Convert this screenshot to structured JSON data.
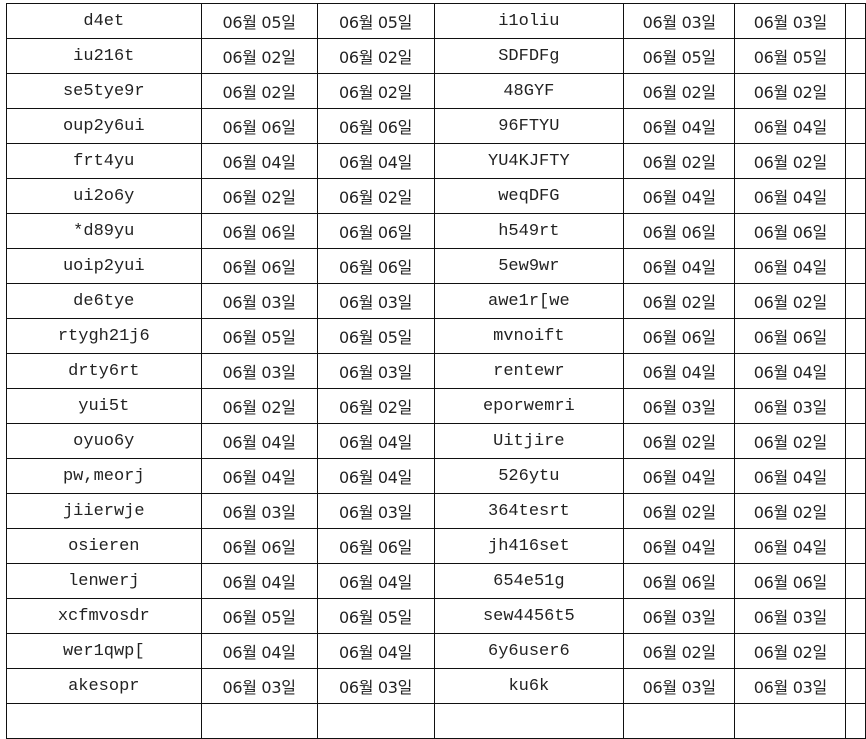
{
  "rows": [
    {
      "name1": "d4et",
      "d1a": "06월 05일",
      "d1b": "06월 05일",
      "name2": "i1oliu",
      "d2a": "06월 03일",
      "d2b": "06월 03일"
    },
    {
      "name1": "iu216t",
      "d1a": "06월 02일",
      "d1b": "06월 02일",
      "name2": "SDFDFg",
      "d2a": "06월 05일",
      "d2b": "06월 05일"
    },
    {
      "name1": "se5tye9r",
      "d1a": "06월 02일",
      "d1b": "06월 02일",
      "name2": "48GYF",
      "d2a": "06월 02일",
      "d2b": "06월 02일"
    },
    {
      "name1": "oup2y6ui",
      "d1a": "06월 06일",
      "d1b": "06월 06일",
      "name2": "96FTYU",
      "d2a": "06월 04일",
      "d2b": "06월 04일"
    },
    {
      "name1": "frt4yu",
      "d1a": "06월 04일",
      "d1b": "06월 04일",
      "name2": "YU4KJFTY",
      "d2a": "06월 02일",
      "d2b": "06월 02일"
    },
    {
      "name1": "ui2o6y",
      "d1a": "06월 02일",
      "d1b": "06월 02일",
      "name2": "weqDFG",
      "d2a": "06월 04일",
      "d2b": "06월 04일"
    },
    {
      "name1": "*d89yu",
      "d1a": "06월 06일",
      "d1b": "06월 06일",
      "name2": "h549rt",
      "d2a": "06월 06일",
      "d2b": "06월 06일"
    },
    {
      "name1": "uoip2yui",
      "d1a": "06월 06일",
      "d1b": "06월 06일",
      "name2": "5ew9wr",
      "d2a": "06월 04일",
      "d2b": "06월 04일"
    },
    {
      "name1": "de6tye",
      "d1a": "06월 03일",
      "d1b": "06월 03일",
      "name2": "awe1r[we",
      "d2a": "06월 02일",
      "d2b": "06월 02일"
    },
    {
      "name1": "rtygh21j6",
      "d1a": "06월 05일",
      "d1b": "06월 05일",
      "name2": "mvnoift",
      "d2a": "06월 06일",
      "d2b": "06월 06일"
    },
    {
      "name1": "drty6rt",
      "d1a": "06월 03일",
      "d1b": "06월 03일",
      "name2": "rentewr",
      "d2a": "06월 04일",
      "d2b": "06월 04일"
    },
    {
      "name1": "yui5t",
      "d1a": "06월 02일",
      "d1b": "06월 02일",
      "name2": "eporwemri",
      "d2a": "06월 03일",
      "d2b": "06월 03일"
    },
    {
      "name1": "oyuo6y",
      "d1a": "06월 04일",
      "d1b": "06월 04일",
      "name2": "Uitjire",
      "d2a": "06월 02일",
      "d2b": "06월 02일"
    },
    {
      "name1": "pw,meorj",
      "d1a": "06월 04일",
      "d1b": "06월 04일",
      "name2": "526ytu",
      "d2a": "06월 04일",
      "d2b": "06월 04일"
    },
    {
      "name1": "jiierwje",
      "d1a": "06월 03일",
      "d1b": "06월 03일",
      "name2": "364tesrt",
      "d2a": "06월 02일",
      "d2b": "06월 02일"
    },
    {
      "name1": "osieren",
      "d1a": "06월 06일",
      "d1b": "06월 06일",
      "name2": "jh416set",
      "d2a": "06월 04일",
      "d2b": "06월 04일"
    },
    {
      "name1": "lenwerj",
      "d1a": "06월 04일",
      "d1b": "06월 04일",
      "name2": "654e51g",
      "d2a": "06월 06일",
      "d2b": "06월 06일"
    },
    {
      "name1": "xcfmvosdr",
      "d1a": "06월 05일",
      "d1b": "06월 05일",
      "name2": "sew4456t5",
      "d2a": "06월 03일",
      "d2b": "06월 03일"
    },
    {
      "name1": "wer1qwp[",
      "d1a": "06월 04일",
      "d1b": "06월 04일",
      "name2": "6y6user6",
      "d2a": "06월 02일",
      "d2b": "06월 02일"
    },
    {
      "name1": "akesopr",
      "d1a": "06월 03일",
      "d1b": "06월 03일",
      "name2": "ku6k",
      "d2a": "06월 03일",
      "d2b": "06월 03일"
    }
  ]
}
